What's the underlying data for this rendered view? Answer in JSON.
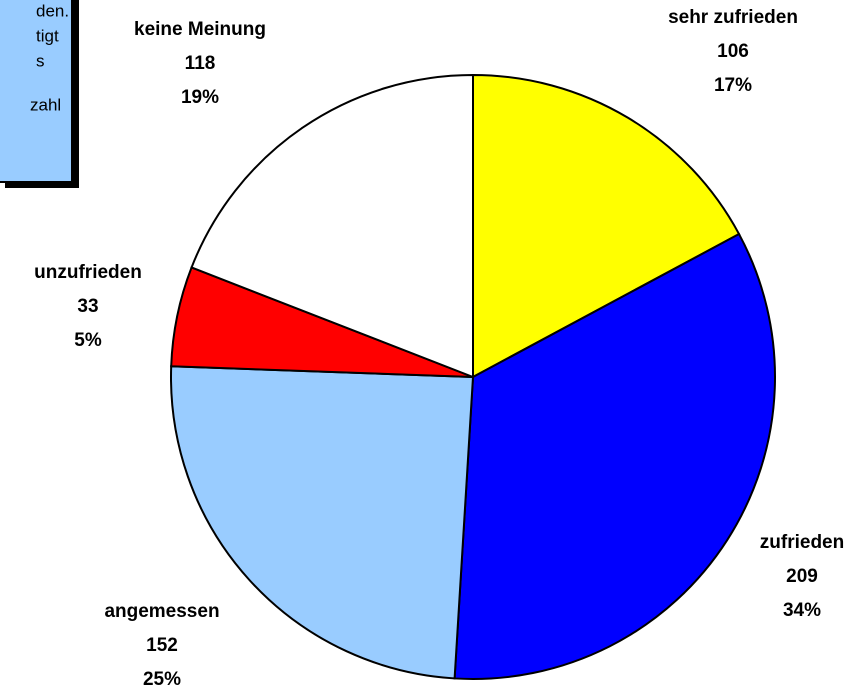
{
  "chart_data": {
    "type": "pie",
    "categories": [
      "sehr zufrieden",
      "zufrieden",
      "angemessen",
      "unzufrieden",
      "keine Meinung"
    ],
    "values": [
      106,
      209,
      152,
      33,
      118
    ],
    "percentages": [
      17,
      34,
      25,
      5,
      19
    ],
    "percentage_labels": [
      "17%",
      "34%",
      "25%",
      "5%",
      "19%"
    ],
    "colors": [
      "#ffff00",
      "#0000ff",
      "#99ccff",
      "#ff0000",
      "#ffffff"
    ],
    "annotation_lines": [
      "den.",
      "tigt",
      "s",
      "zahl"
    ]
  }
}
